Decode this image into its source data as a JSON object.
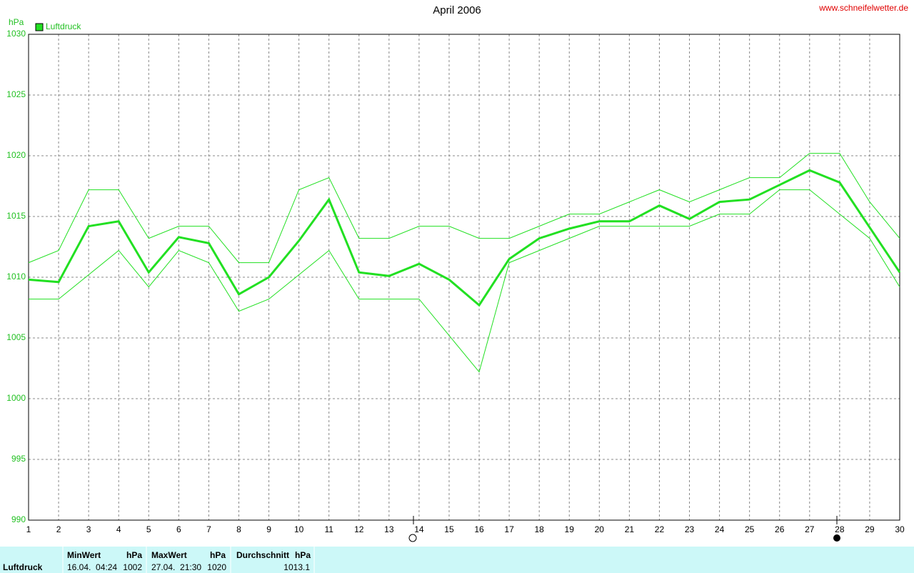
{
  "chart_data": {
    "type": "line",
    "title": "April 2006",
    "source": "www.schneifelwetter.de",
    "y_unit": "hPa",
    "x": [
      1,
      2,
      3,
      4,
      5,
      6,
      7,
      8,
      9,
      10,
      11,
      12,
      13,
      14,
      15,
      16,
      17,
      18,
      19,
      20,
      21,
      22,
      23,
      24,
      25,
      26,
      27,
      28,
      29,
      30
    ],
    "xlim": [
      1,
      30
    ],
    "xticks": [
      1,
      2,
      3,
      4,
      5,
      6,
      7,
      8,
      9,
      10,
      11,
      12,
      13,
      14,
      15,
      16,
      17,
      18,
      19,
      20,
      21,
      22,
      23,
      24,
      25,
      26,
      27,
      28,
      29,
      30
    ],
    "ylim": [
      990,
      1030
    ],
    "yticks": [
      990,
      995,
      1000,
      1005,
      1010,
      1015,
      1020,
      1025,
      1030
    ],
    "grid": true,
    "series": [
      {
        "name": "Luftdruck",
        "color": "#22e022",
        "values": [
          1009.8,
          1009.6,
          1014.2,
          1014.6,
          1010.4,
          1013.3,
          1012.8,
          1008.6,
          1010.0,
          1013.0,
          1016.4,
          1010.4,
          1010.1,
          1011.1,
          1009.8,
          1007.7,
          1011.5,
          1013.2,
          1014.0,
          1014.6,
          1014.6,
          1015.9,
          1014.8,
          1016.2,
          1016.4,
          1017.6,
          1018.8,
          1017.8,
          1014.1,
          1010.4
        ]
      },
      {
        "color": "#22e022",
        "values": [
          1011.2,
          1012.2,
          1017.2,
          1017.2,
          1013.2,
          1014.2,
          1014.2,
          1011.2,
          1011.2,
          1017.2,
          1018.2,
          1013.2,
          1013.2,
          1014.2,
          1014.2,
          1013.2,
          1013.2,
          1014.2,
          1015.2,
          1015.2,
          1016.2,
          1017.2,
          1016.2,
          1017.2,
          1018.2,
          1018.2,
          1020.2,
          1020.2,
          1016.2,
          1013.2
        ]
      },
      {
        "color": "#22e022",
        "values": [
          1008.2,
          1008.2,
          1010.2,
          1012.2,
          1009.2,
          1012.2,
          1011.2,
          1007.2,
          1008.2,
          1010.2,
          1012.2,
          1008.2,
          1008.2,
          1008.2,
          1005.2,
          1002.2,
          1011.2,
          1012.2,
          1013.2,
          1014.2,
          1014.2,
          1014.2,
          1014.2,
          1015.2,
          1015.2,
          1017.2,
          1017.2,
          1015.2,
          1013.2,
          1009.2
        ]
      }
    ]
  },
  "summary": {
    "label": "Luftdruck",
    "min": {
      "header": "MinWert",
      "unit": "hPa",
      "when": "16.04.  04:24",
      "value": 1002
    },
    "max": {
      "header": "MaxWert",
      "unit": "hPa",
      "when": "27.04.  21:30",
      "value": 1020
    },
    "mean": {
      "header": "Durchschnitt",
      "unit": "hPa",
      "value": 1013.1
    }
  }
}
